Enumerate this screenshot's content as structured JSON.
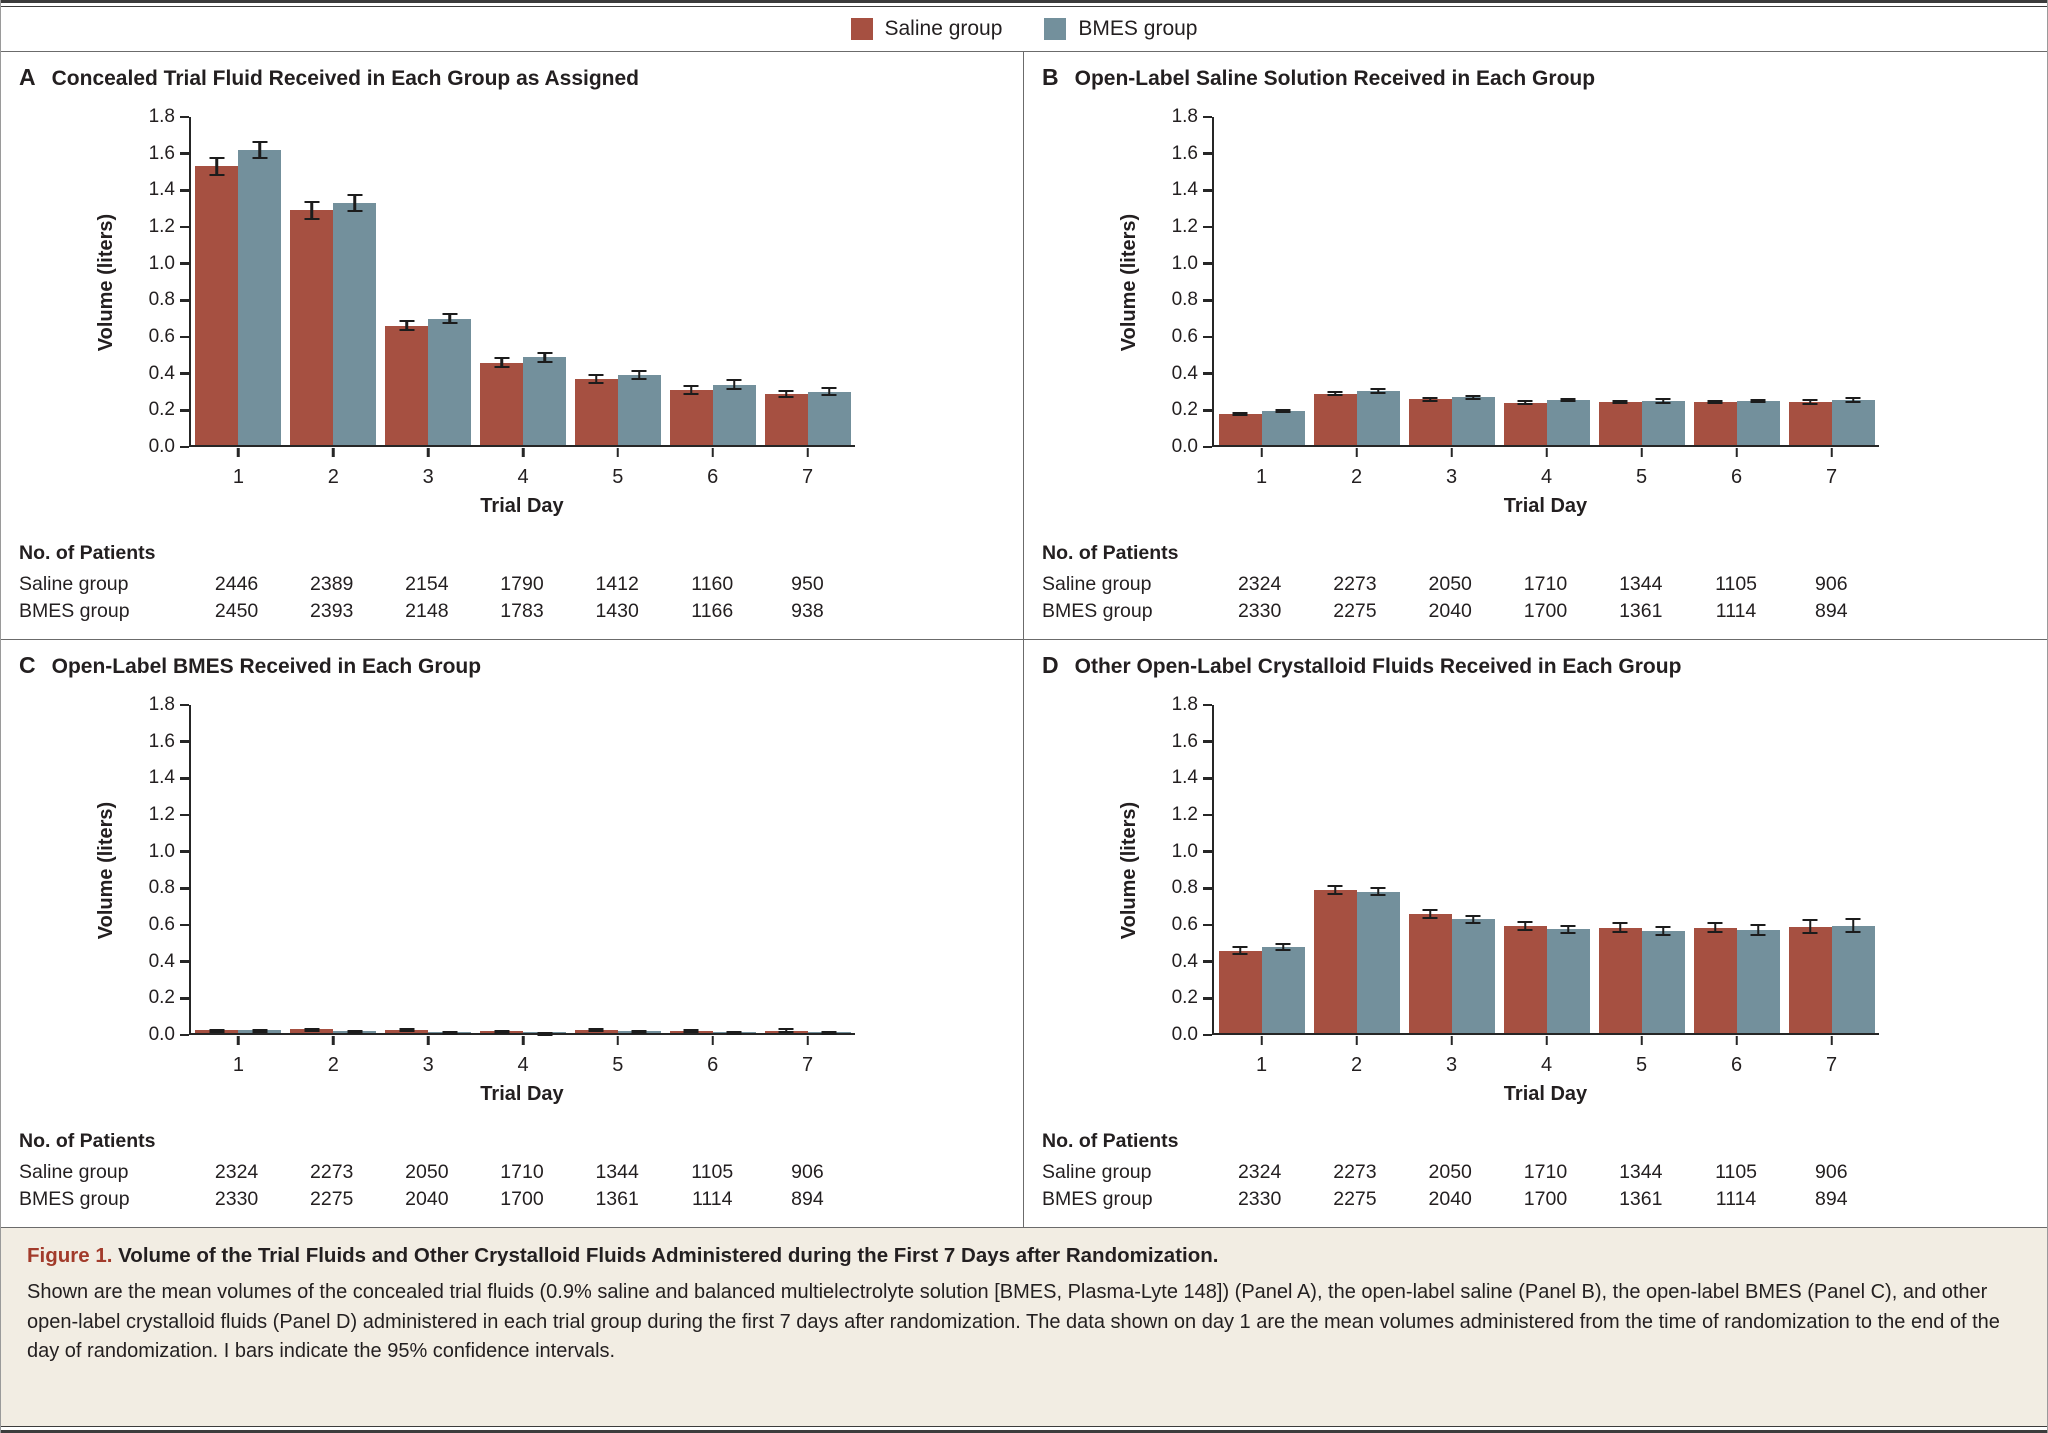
{
  "legend": [
    {
      "label": "Saline group",
      "color": "#a65041"
    },
    {
      "label": "BMES group",
      "color": "#73909c"
    }
  ],
  "axis": {
    "ytick_step": 0.2
  },
  "table": {
    "header": "No. of Patients",
    "row_labels": [
      "Saline group",
      "BMES group"
    ]
  },
  "chart_data": [
    {
      "type": "bar",
      "panel": "A",
      "title": "Concealed Trial Fluid Received in Each Group as Assigned",
      "categories": [
        "1",
        "2",
        "3",
        "4",
        "5",
        "6",
        "7"
      ],
      "xlabel": "Trial Day",
      "ylabel": "Volume (liters)",
      "ylim": [
        0,
        1.8
      ],
      "series": [
        {
          "name": "Saline group",
          "values": [
            1.52,
            1.28,
            0.65,
            0.45,
            0.36,
            0.3,
            0.28
          ],
          "ci_half": [
            0.05,
            0.05,
            0.03,
            0.03,
            0.025,
            0.025,
            0.022
          ]
        },
        {
          "name": "BMES group",
          "values": [
            1.61,
            1.32,
            0.69,
            0.48,
            0.38,
            0.33,
            0.29
          ],
          "ci_half": [
            0.05,
            0.05,
            0.03,
            0.03,
            0.027,
            0.03,
            0.025
          ]
        }
      ],
      "patients": [
        [
          2446,
          2389,
          2154,
          1790,
          1412,
          1160,
          950
        ],
        [
          2450,
          2393,
          2148,
          1783,
          1430,
          1166,
          938
        ]
      ]
    },
    {
      "type": "bar",
      "panel": "B",
      "title": "Open-Label Saline Solution Received in Each Group",
      "categories": [
        "1",
        "2",
        "3",
        "4",
        "5",
        "6",
        "7"
      ],
      "xlabel": "Trial Day",
      "ylabel": "Volume (liters)",
      "ylim": [
        0,
        1.8
      ],
      "series": [
        {
          "name": "Saline group",
          "values": [
            0.17,
            0.28,
            0.25,
            0.23,
            0.235,
            0.235,
            0.235
          ],
          "ci_half": [
            0.012,
            0.015,
            0.013,
            0.013,
            0.013,
            0.013,
            0.016
          ]
        },
        {
          "name": "BMES group",
          "values": [
            0.185,
            0.295,
            0.26,
            0.245,
            0.24,
            0.24,
            0.245
          ],
          "ci_half": [
            0.012,
            0.015,
            0.013,
            0.013,
            0.014,
            0.013,
            0.016
          ]
        }
      ],
      "patients": [
        [
          2324,
          2273,
          2050,
          1710,
          1344,
          1105,
          906
        ],
        [
          2330,
          2275,
          2040,
          1700,
          1361,
          1114,
          894
        ]
      ]
    },
    {
      "type": "bar",
      "panel": "C",
      "title": "Open-Label BMES Received in Each Group",
      "categories": [
        "1",
        "2",
        "3",
        "4",
        "5",
        "6",
        "7"
      ],
      "xlabel": "Trial Day",
      "ylabel": "Volume (liters)",
      "ylim": [
        0,
        1.8
      ],
      "series": [
        {
          "name": "Saline group",
          "values": [
            0.015,
            0.02,
            0.018,
            0.012,
            0.018,
            0.013,
            0.013
          ],
          "ci_half": [
            0.006,
            0.008,
            0.012,
            0.006,
            0.012,
            0.01,
            0.012
          ]
        },
        {
          "name": "BMES group",
          "values": [
            0.015,
            0.012,
            0.006,
            0.004,
            0.01,
            0.007,
            0.008
          ],
          "ci_half": [
            0.006,
            0.006,
            0.003,
            0.002,
            0.005,
            0.004,
            0.004
          ]
        }
      ],
      "patients": [
        [
          2324,
          2273,
          2050,
          1710,
          1344,
          1105,
          906
        ],
        [
          2330,
          2275,
          2040,
          1700,
          1361,
          1114,
          894
        ]
      ]
    },
    {
      "type": "bar",
      "panel": "D",
      "title": "Other Open-Label Crystalloid Fluids Received in Each Group",
      "categories": [
        "1",
        "2",
        "3",
        "4",
        "5",
        "6",
        "7"
      ],
      "xlabel": "Trial Day",
      "ylabel": "Volume (liters)",
      "ylim": [
        0,
        1.8
      ],
      "series": [
        {
          "name": "Saline group",
          "values": [
            0.45,
            0.78,
            0.65,
            0.585,
            0.575,
            0.575,
            0.58
          ],
          "ci_half": [
            0.022,
            0.028,
            0.028,
            0.028,
            0.03,
            0.032,
            0.04
          ]
        },
        {
          "name": "BMES group",
          "values": [
            0.47,
            0.77,
            0.62,
            0.565,
            0.555,
            0.56,
            0.585
          ],
          "ci_half": [
            0.022,
            0.025,
            0.025,
            0.025,
            0.028,
            0.033,
            0.04
          ]
        }
      ],
      "patients": [
        [
          2324,
          2273,
          2050,
          1710,
          1344,
          1105,
          906
        ],
        [
          2330,
          2275,
          2040,
          1700,
          1361,
          1114,
          894
        ]
      ]
    }
  ],
  "caption": {
    "label": "Figure 1.",
    "title": "Volume of the Trial Fluids and Other Crystalloid Fluids Administered during the First 7 Days after Randomization.",
    "body": "Shown are the mean volumes of the concealed trial fluids (0.9% saline and balanced multielectrolyte solution [BMES, Plasma-Lyte 148]) (Panel A), the open-label saline (Panel B), the open-label BMES (Panel C), and other open-label crystalloid fluids (Panel D) administered in each trial group during the first 7 days after randomization. The data shown on day 1 are the mean volumes administered from the time of randomization to the end of the day of randomization. I bars indicate the 95% confidence intervals."
  }
}
